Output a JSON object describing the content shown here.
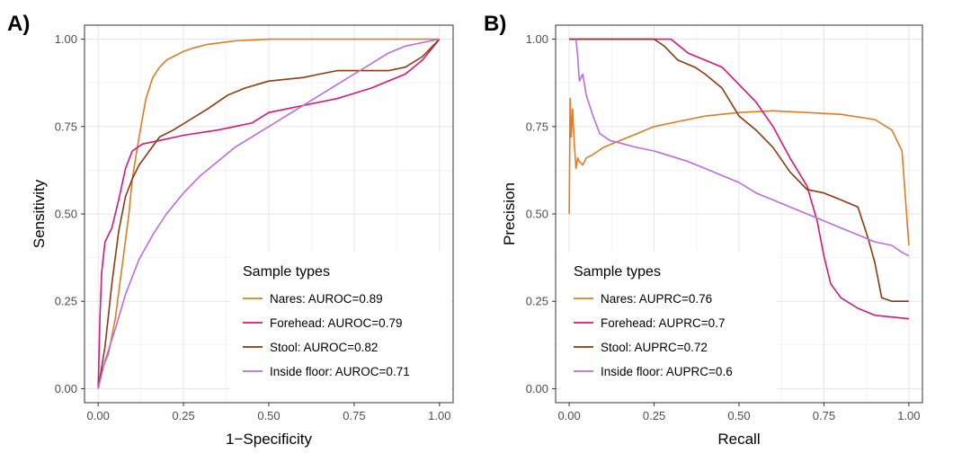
{
  "chart_data": [
    {
      "panel": "A)",
      "type": "line",
      "xlabel": "1−Specificity",
      "ylabel": "Sensitivity",
      "xlim": [
        0,
        1
      ],
      "ylim": [
        0,
        1
      ],
      "x_ticks": [
        "0.00",
        "0.25",
        "0.50",
        "0.75",
        "1.00"
      ],
      "y_ticks": [
        "0.00",
        "0.25",
        "0.50",
        "0.75",
        "1.00"
      ],
      "grid": true,
      "legend": {
        "title": "Sample types",
        "placement": "bottom-right",
        "entries": [
          "Nares: AUROC=0.89",
          "Forehead: AUROC=0.79",
          "Stool: AUROC=0.82",
          "Inside floor: AUROC=0.71"
        ]
      },
      "series": [
        {
          "name": "Nares",
          "color": "#e07b22",
          "x": [
            0,
            0.01,
            0.03,
            0.05,
            0.07,
            0.09,
            0.1,
            0.12,
            0.14,
            0.16,
            0.18,
            0.2,
            0.22,
            0.25,
            0.28,
            0.32,
            0.4,
            0.5,
            0.6,
            1.0
          ],
          "y": [
            0,
            0.05,
            0.1,
            0.2,
            0.35,
            0.5,
            0.6,
            0.72,
            0.83,
            0.89,
            0.92,
            0.94,
            0.95,
            0.965,
            0.975,
            0.985,
            0.995,
            1.0,
            1.0,
            1.0
          ]
        },
        {
          "name": "Forehead",
          "color": "#d6167a",
          "x": [
            0,
            0.005,
            0.01,
            0.02,
            0.04,
            0.06,
            0.08,
            0.1,
            0.13,
            0.18,
            0.25,
            0.35,
            0.45,
            0.5,
            0.55,
            0.6,
            0.7,
            0.8,
            0.9,
            0.95,
            1.0
          ],
          "y": [
            0,
            0.2,
            0.33,
            0.42,
            0.46,
            0.54,
            0.63,
            0.68,
            0.7,
            0.71,
            0.725,
            0.74,
            0.76,
            0.79,
            0.8,
            0.81,
            0.83,
            0.86,
            0.9,
            0.94,
            1.0
          ]
        },
        {
          "name": "Stool",
          "color": "#8b3a0e",
          "x": [
            0,
            0.02,
            0.04,
            0.06,
            0.08,
            0.1,
            0.12,
            0.15,
            0.18,
            0.22,
            0.27,
            0.32,
            0.38,
            0.43,
            0.5,
            0.6,
            0.65,
            0.7,
            0.8,
            0.85,
            0.9,
            0.95,
            1.0
          ],
          "y": [
            0,
            0.12,
            0.3,
            0.45,
            0.55,
            0.6,
            0.64,
            0.68,
            0.72,
            0.74,
            0.77,
            0.8,
            0.84,
            0.86,
            0.88,
            0.89,
            0.9,
            0.91,
            0.91,
            0.91,
            0.92,
            0.95,
            1.0
          ]
        },
        {
          "name": "Inside floor",
          "color": "#b86ee0",
          "x": [
            0,
            0.02,
            0.05,
            0.08,
            0.12,
            0.16,
            0.2,
            0.25,
            0.3,
            0.35,
            0.4,
            0.45,
            0.5,
            0.55,
            0.6,
            0.65,
            0.7,
            0.75,
            0.8,
            0.85,
            0.9,
            0.95,
            1.0
          ],
          "y": [
            0,
            0.08,
            0.17,
            0.27,
            0.37,
            0.44,
            0.5,
            0.56,
            0.61,
            0.65,
            0.69,
            0.72,
            0.75,
            0.78,
            0.81,
            0.84,
            0.87,
            0.9,
            0.93,
            0.96,
            0.98,
            0.99,
            1.0
          ]
        }
      ]
    },
    {
      "panel": "B)",
      "type": "line",
      "xlabel": "Recall",
      "ylabel": "Precision",
      "xlim": [
        0,
        1
      ],
      "ylim": [
        0,
        1
      ],
      "x_ticks": [
        "0.00",
        "0.25",
        "0.50",
        "0.75",
        "1.00"
      ],
      "y_ticks": [
        "0.00",
        "0.25",
        "0.50",
        "0.75",
        "1.00"
      ],
      "grid": true,
      "legend": {
        "title": "Sample types",
        "placement": "bottom-left",
        "entries": [
          "Nares: AUPRC=0.76",
          "Forehead: AUPRC=0.7",
          "Stool: AUPRC=0.72",
          "Inside floor: AUPRC=0.6"
        ]
      },
      "series": [
        {
          "name": "Nares",
          "color": "#e07b22",
          "x": [
            0,
            0.003,
            0.006,
            0.01,
            0.015,
            0.02,
            0.025,
            0.03,
            0.04,
            0.05,
            0.07,
            0.1,
            0.15,
            0.2,
            0.25,
            0.3,
            0.4,
            0.5,
            0.6,
            0.7,
            0.8,
            0.9,
            0.95,
            0.98,
            1.0
          ],
          "y": [
            0.5,
            0.83,
            0.72,
            0.8,
            0.7,
            0.63,
            0.66,
            0.65,
            0.64,
            0.66,
            0.67,
            0.69,
            0.71,
            0.73,
            0.75,
            0.76,
            0.78,
            0.79,
            0.795,
            0.79,
            0.785,
            0.77,
            0.74,
            0.68,
            0.41
          ]
        },
        {
          "name": "Forehead",
          "color": "#d6167a",
          "x": [
            0,
            0.1,
            0.2,
            0.3,
            0.35,
            0.4,
            0.45,
            0.5,
            0.55,
            0.6,
            0.65,
            0.7,
            0.73,
            0.75,
            0.77,
            0.8,
            0.85,
            0.9,
            0.95,
            1.0
          ],
          "y": [
            1.0,
            1.0,
            1.0,
            1.0,
            0.96,
            0.94,
            0.92,
            0.87,
            0.82,
            0.75,
            0.66,
            0.58,
            0.48,
            0.38,
            0.3,
            0.26,
            0.23,
            0.21,
            0.205,
            0.2
          ]
        },
        {
          "name": "Stool",
          "color": "#8b3a0e",
          "x": [
            0,
            0.1,
            0.2,
            0.25,
            0.28,
            0.32,
            0.37,
            0.4,
            0.45,
            0.5,
            0.55,
            0.6,
            0.65,
            0.7,
            0.75,
            0.8,
            0.85,
            0.88,
            0.9,
            0.92,
            0.95,
            1.0
          ],
          "y": [
            1.0,
            1.0,
            1.0,
            1.0,
            0.98,
            0.94,
            0.92,
            0.9,
            0.86,
            0.78,
            0.74,
            0.69,
            0.62,
            0.57,
            0.56,
            0.54,
            0.52,
            0.43,
            0.36,
            0.26,
            0.25,
            0.25
          ]
        },
        {
          "name": "Inside floor",
          "color": "#b86ee0",
          "x": [
            0.02,
            0.025,
            0.03,
            0.04,
            0.05,
            0.07,
            0.09,
            0.12,
            0.16,
            0.2,
            0.25,
            0.3,
            0.35,
            0.4,
            0.45,
            0.5,
            0.55,
            0.6,
            0.65,
            0.7,
            0.75,
            0.8,
            0.85,
            0.9,
            0.95,
            0.98,
            1.0
          ],
          "y": [
            1.0,
            0.95,
            0.88,
            0.9,
            0.84,
            0.78,
            0.73,
            0.71,
            0.7,
            0.69,
            0.68,
            0.665,
            0.65,
            0.63,
            0.61,
            0.59,
            0.56,
            0.54,
            0.52,
            0.5,
            0.48,
            0.46,
            0.44,
            0.42,
            0.41,
            0.39,
            0.38
          ]
        }
      ]
    }
  ]
}
